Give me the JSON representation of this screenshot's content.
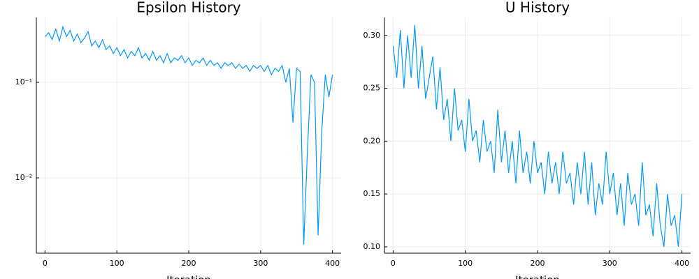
{
  "chart_data": [
    {
      "type": "line",
      "title": "Epsilon History",
      "xlabel": "Iteration",
      "color": "#009af9",
      "log_scale": true,
      "grid": true,
      "xlim": [
        -12,
        412
      ],
      "xticks": [
        0,
        100,
        200,
        300,
        400
      ],
      "ylim": [
        0.00163,
        0.477
      ],
      "yticks": [
        {
          "value": 0.01,
          "label": "10⁻²"
        },
        {
          "value": 0.1,
          "label": "10⁻¹"
        }
      ],
      "x": [
        0,
        5,
        10,
        15,
        20,
        25,
        30,
        35,
        40,
        45,
        50,
        55,
        60,
        65,
        70,
        75,
        80,
        85,
        90,
        95,
        100,
        105,
        110,
        115,
        120,
        125,
        130,
        135,
        140,
        145,
        150,
        155,
        160,
        165,
        170,
        175,
        180,
        185,
        190,
        195,
        200,
        205,
        210,
        215,
        220,
        225,
        230,
        235,
        240,
        245,
        250,
        255,
        260,
        265,
        270,
        275,
        280,
        285,
        290,
        295,
        300,
        305,
        310,
        315,
        320,
        325,
        330,
        335,
        340,
        345,
        350,
        355,
        360,
        365,
        370,
        375,
        380,
        385,
        390,
        395,
        400
      ],
      "values": [
        0.3,
        0.33,
        0.28,
        0.36,
        0.27,
        0.38,
        0.3,
        0.35,
        0.27,
        0.32,
        0.26,
        0.29,
        0.34,
        0.24,
        0.27,
        0.23,
        0.28,
        0.22,
        0.24,
        0.2,
        0.23,
        0.19,
        0.22,
        0.18,
        0.21,
        0.19,
        0.23,
        0.18,
        0.2,
        0.17,
        0.21,
        0.17,
        0.19,
        0.16,
        0.2,
        0.16,
        0.18,
        0.17,
        0.19,
        0.16,
        0.18,
        0.15,
        0.17,
        0.16,
        0.18,
        0.15,
        0.17,
        0.15,
        0.16,
        0.14,
        0.16,
        0.15,
        0.16,
        0.14,
        0.155,
        0.14,
        0.15,
        0.13,
        0.15,
        0.14,
        0.15,
        0.13,
        0.15,
        0.12,
        0.14,
        0.13,
        0.15,
        0.1,
        0.14,
        0.038,
        0.14,
        0.13,
        0.002,
        0.018,
        0.12,
        0.1,
        0.0025,
        0.03,
        0.12,
        0.07,
        0.12
      ]
    },
    {
      "type": "line",
      "title": "U History",
      "xlabel": "Iteration",
      "color": "#009af9",
      "log_scale": false,
      "grid": true,
      "xlim": [
        -12,
        412
      ],
      "xticks": [
        0,
        100,
        200,
        300,
        400
      ],
      "ylim": [
        0.094,
        0.317
      ],
      "yticks": [
        {
          "value": 0.1,
          "label": "0.10"
        },
        0.15,
        {
          "value": 0.2,
          "label": "0.20"
        },
        0.25,
        {
          "value": 0.3,
          "label": "0.30"
        }
      ],
      "x": [
        0,
        5,
        10,
        15,
        20,
        25,
        30,
        35,
        40,
        45,
        50,
        55,
        60,
        65,
        70,
        75,
        80,
        85,
        90,
        95,
        100,
        105,
        110,
        115,
        120,
        125,
        130,
        135,
        140,
        145,
        150,
        155,
        160,
        165,
        170,
        175,
        180,
        185,
        190,
        195,
        200,
        205,
        210,
        215,
        220,
        225,
        230,
        235,
        240,
        245,
        250,
        255,
        260,
        265,
        270,
        275,
        280,
        285,
        290,
        295,
        300,
        305,
        310,
        315,
        320,
        325,
        330,
        335,
        340,
        345,
        350,
        355,
        360,
        365,
        370,
        375,
        380,
        385,
        390,
        395,
        400
      ],
      "values": [
        0.29,
        0.26,
        0.305,
        0.25,
        0.3,
        0.26,
        0.31,
        0.25,
        0.29,
        0.24,
        0.26,
        0.28,
        0.23,
        0.27,
        0.22,
        0.24,
        0.2,
        0.25,
        0.21,
        0.22,
        0.19,
        0.24,
        0.2,
        0.21,
        0.18,
        0.22,
        0.19,
        0.2,
        0.17,
        0.23,
        0.18,
        0.21,
        0.17,
        0.2,
        0.16,
        0.21,
        0.17,
        0.19,
        0.16,
        0.2,
        0.17,
        0.18,
        0.15,
        0.19,
        0.16,
        0.18,
        0.15,
        0.19,
        0.16,
        0.17,
        0.14,
        0.18,
        0.15,
        0.19,
        0.14,
        0.18,
        0.13,
        0.16,
        0.14,
        0.19,
        0.15,
        0.17,
        0.13,
        0.16,
        0.12,
        0.17,
        0.14,
        0.15,
        0.12,
        0.18,
        0.13,
        0.14,
        0.11,
        0.16,
        0.12,
        0.1,
        0.15,
        0.12,
        0.13,
        0.1,
        0.15
      ]
    }
  ]
}
